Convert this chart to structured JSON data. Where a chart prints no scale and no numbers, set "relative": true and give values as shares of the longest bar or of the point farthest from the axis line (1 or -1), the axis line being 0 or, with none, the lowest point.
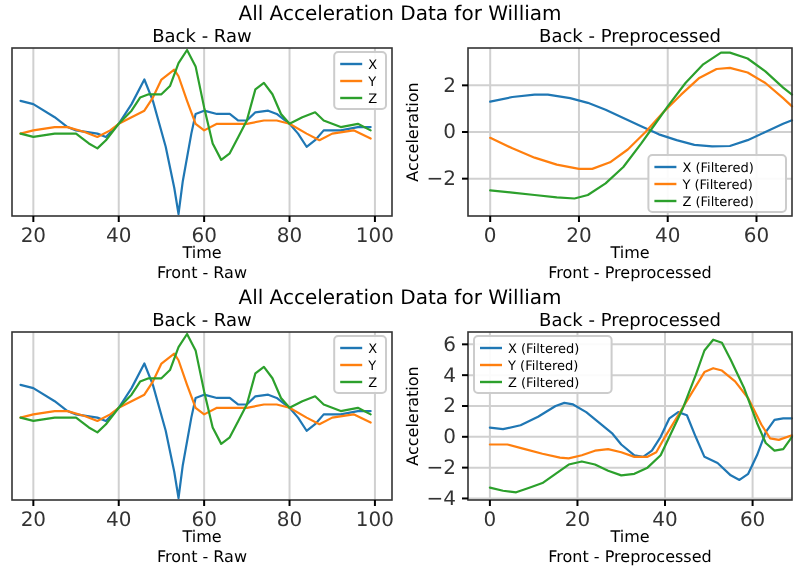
{
  "chart_data": [
    {
      "type": "line",
      "title": "Back - Raw",
      "xlabel": "Time",
      "relative": true,
      "xlim": [
        15,
        104
      ],
      "xticks": [
        20,
        40,
        60,
        80,
        100
      ],
      "grid": "x",
      "legend": "top right",
      "annotations": [
        "All Acceleration Data for William",
        "Front - Raw"
      ],
      "series": [
        {
          "name": "X",
          "color": "#1f77b4",
          "x": [
            17,
            20,
            25,
            28,
            30,
            35,
            37,
            40,
            43,
            46,
            48,
            51,
            53,
            54,
            55,
            57,
            58,
            60,
            63,
            66,
            68,
            70,
            72,
            75,
            77,
            80,
            82,
            84,
            86,
            88,
            92,
            96,
            99
          ],
          "values": [
            0.69,
            0.67,
            0.59,
            0.53,
            0.51,
            0.49,
            0.47,
            0.55,
            0.67,
            0.82,
            0.69,
            0.41,
            0.16,
            0,
            0.2,
            0.49,
            0.61,
            0.63,
            0.61,
            0.61,
            0.57,
            0.57,
            0.62,
            0.63,
            0.61,
            0.55,
            0.49,
            0.41,
            0.45,
            0.51,
            0.51,
            0.53,
            0.53
          ]
        },
        {
          "name": "Y",
          "color": "#ff7f0e",
          "x": [
            17,
            20,
            25,
            28,
            32,
            35,
            38,
            40,
            43,
            46,
            48,
            50,
            53,
            54,
            56,
            58,
            60,
            63,
            66,
            70,
            74,
            77,
            80,
            84,
            87,
            90,
            95,
            99
          ],
          "values": [
            0.49,
            0.51,
            0.53,
            0.53,
            0.5,
            0.47,
            0.51,
            0.55,
            0.59,
            0.63,
            0.71,
            0.82,
            0.88,
            0.84,
            0.69,
            0.55,
            0.51,
            0.55,
            0.55,
            0.55,
            0.57,
            0.57,
            0.55,
            0.49,
            0.45,
            0.49,
            0.51,
            0.46
          ]
        },
        {
          "name": "Z",
          "color": "#2ca02c",
          "x": [
            17,
            20,
            25,
            30,
            33,
            35,
            37,
            40,
            43,
            45,
            47,
            50,
            52,
            54,
            56,
            58,
            60,
            62,
            64,
            66,
            68,
            70,
            72,
            74,
            76,
            78,
            80,
            83,
            86,
            88,
            92,
            96,
            99
          ],
          "values": [
            0.49,
            0.47,
            0.49,
            0.49,
            0.43,
            0.4,
            0.45,
            0.55,
            0.63,
            0.71,
            0.73,
            0.73,
            0.78,
            0.92,
            1,
            0.9,
            0.65,
            0.43,
            0.33,
            0.37,
            0.47,
            0.57,
            0.76,
            0.8,
            0.73,
            0.61,
            0.55,
            0.59,
            0.62,
            0.57,
            0.53,
            0.55,
            0.51
          ]
        }
      ]
    },
    {
      "type": "line",
      "title": "Back - Preprocessed",
      "xlabel": "Time",
      "ylabel": "Acceleration",
      "xlim": [
        -5,
        68
      ],
      "xticks": [
        0,
        20,
        40,
        60
      ],
      "ylim": [
        -3.6,
        3.6
      ],
      "yticks": [
        -2,
        0,
        2
      ],
      "grid": true,
      "legend": "bottom right",
      "annotations": [
        "Front - Preprocessed"
      ],
      "series": [
        {
          "name": "X (Filtered)",
          "color": "#1f77b4",
          "x": [
            0,
            5,
            10,
            13,
            18,
            22,
            26,
            30,
            34,
            38,
            42,
            46,
            50,
            54,
            58,
            62,
            66,
            68
          ],
          "values": [
            1.3,
            1.5,
            1.6,
            1.6,
            1.45,
            1.25,
            0.95,
            0.6,
            0.25,
            -0.1,
            -0.35,
            -0.55,
            -0.62,
            -0.6,
            -0.35,
            0,
            0.35,
            0.5
          ]
        },
        {
          "name": "Y (Filtered)",
          "color": "#ff7f0e",
          "x": [
            0,
            5,
            10,
            15,
            20,
            23,
            27,
            31,
            35,
            39,
            43,
            47,
            51,
            54,
            58,
            62,
            66,
            68
          ],
          "values": [
            -0.25,
            -0.7,
            -1.1,
            -1.4,
            -1.58,
            -1.58,
            -1.3,
            -0.75,
            0,
            0.85,
            1.6,
            2.3,
            2.7,
            2.75,
            2.55,
            2.1,
            1.45,
            1.1
          ]
        },
        {
          "name": "Z (Filtered)",
          "color": "#2ca02c",
          "x": [
            0,
            5,
            10,
            15,
            19,
            22,
            26,
            30,
            34,
            37,
            40,
            44,
            48,
            52,
            54,
            58,
            62,
            66,
            68
          ],
          "values": [
            -2.5,
            -2.6,
            -2.7,
            -2.8,
            -2.85,
            -2.7,
            -2.2,
            -1.5,
            -0.5,
            0.3,
            1.1,
            2.1,
            2.9,
            3.4,
            3.4,
            3.15,
            2.6,
            1.9,
            1.6
          ]
        }
      ]
    },
    {
      "type": "line",
      "title": "Back - Raw",
      "xlabel": "Time",
      "relative": true,
      "xlim": [
        15,
        104
      ],
      "xticks": [
        20,
        40,
        60,
        80,
        100
      ],
      "grid": "x",
      "legend": "top right",
      "annotations": [
        "All Acceleration Data for William",
        "Front - Raw"
      ],
      "series": [
        {
          "name": "X",
          "color": "#1f77b4",
          "x": [
            17,
            20,
            25,
            28,
            30,
            35,
            37,
            40,
            43,
            46,
            48,
            51,
            53,
            54,
            55,
            57,
            58,
            60,
            63,
            66,
            68,
            70,
            72,
            75,
            77,
            80,
            82,
            84,
            86,
            88,
            92,
            96,
            99
          ],
          "values": [
            0.69,
            0.67,
            0.59,
            0.53,
            0.51,
            0.49,
            0.47,
            0.55,
            0.67,
            0.82,
            0.69,
            0.41,
            0.16,
            0,
            0.2,
            0.49,
            0.61,
            0.63,
            0.61,
            0.61,
            0.57,
            0.57,
            0.62,
            0.63,
            0.61,
            0.55,
            0.49,
            0.41,
            0.45,
            0.51,
            0.51,
            0.53,
            0.53
          ]
        },
        {
          "name": "Y",
          "color": "#ff7f0e",
          "x": [
            17,
            20,
            25,
            28,
            32,
            35,
            38,
            40,
            43,
            46,
            48,
            50,
            53,
            54,
            56,
            58,
            60,
            63,
            66,
            70,
            74,
            77,
            80,
            84,
            87,
            90,
            95,
            99
          ],
          "values": [
            0.49,
            0.51,
            0.53,
            0.53,
            0.5,
            0.47,
            0.51,
            0.55,
            0.59,
            0.63,
            0.71,
            0.82,
            0.88,
            0.84,
            0.69,
            0.55,
            0.51,
            0.55,
            0.55,
            0.55,
            0.57,
            0.57,
            0.55,
            0.49,
            0.45,
            0.49,
            0.51,
            0.46
          ]
        },
        {
          "name": "Z",
          "color": "#2ca02c",
          "x": [
            17,
            20,
            25,
            30,
            33,
            35,
            37,
            40,
            43,
            45,
            47,
            50,
            52,
            54,
            56,
            58,
            60,
            62,
            64,
            66,
            68,
            70,
            72,
            74,
            76,
            78,
            80,
            83,
            86,
            88,
            92,
            96,
            99
          ],
          "values": [
            0.49,
            0.47,
            0.49,
            0.49,
            0.43,
            0.4,
            0.45,
            0.55,
            0.63,
            0.71,
            0.73,
            0.73,
            0.78,
            0.92,
            1,
            0.9,
            0.65,
            0.43,
            0.33,
            0.37,
            0.47,
            0.57,
            0.76,
            0.8,
            0.73,
            0.61,
            0.55,
            0.59,
            0.62,
            0.57,
            0.53,
            0.55,
            0.51
          ]
        }
      ]
    },
    {
      "type": "line",
      "title": "Back - Preprocessed",
      "xlabel": "Time",
      "ylabel": "Acceleration",
      "xlim": [
        -5,
        69
      ],
      "xticks": [
        0,
        20,
        40,
        60
      ],
      "ylim": [
        -4.1,
        6.8
      ],
      "yticks": [
        -4,
        -2,
        0,
        2,
        4,
        6
      ],
      "grid": true,
      "legend": "top left",
      "annotations": [
        "Front - Preprocessed"
      ],
      "series": [
        {
          "name": "X (Filtered)",
          "color": "#1f77b4",
          "x": [
            0,
            3,
            7,
            11,
            15,
            17,
            19,
            22,
            25,
            28,
            30,
            33,
            35,
            37,
            39,
            41,
            43,
            45,
            47,
            49,
            52,
            55,
            57,
            59,
            61,
            63,
            65,
            67,
            69
          ],
          "values": [
            0.6,
            0.5,
            0.75,
            1.3,
            2,
            2.2,
            2.1,
            1.6,
            0.9,
            0.2,
            -0.5,
            -1.2,
            -1.3,
            -0.9,
            0,
            1.2,
            1.6,
            1.4,
            0,
            -1.3,
            -1.7,
            -2.5,
            -2.8,
            -2.4,
            -1.2,
            0.3,
            1.1,
            1.2,
            1.2
          ]
        },
        {
          "name": "Y (Filtered)",
          "color": "#ff7f0e",
          "x": [
            0,
            4,
            8,
            12,
            16,
            18,
            21,
            24,
            27,
            30,
            33,
            36,
            38,
            40,
            43,
            46,
            49,
            51,
            53,
            56,
            59,
            62,
            64,
            66,
            69
          ],
          "values": [
            -0.5,
            -0.5,
            -0.8,
            -1.1,
            -1.35,
            -1.4,
            -1.2,
            -0.9,
            -0.8,
            -1,
            -1.3,
            -1.3,
            -1,
            0,
            1.4,
            2.8,
            4.2,
            4.45,
            4.3,
            3.6,
            2.5,
            0.8,
            -0.1,
            -0.2,
            0.1
          ]
        },
        {
          "name": "Z (Filtered)",
          "color": "#2ca02c",
          "x": [
            0,
            3,
            6,
            9,
            12,
            15,
            18,
            21,
            24,
            27,
            30,
            33,
            36,
            39,
            41,
            44,
            47,
            49,
            51,
            53,
            55,
            58,
            61,
            63,
            65,
            67,
            69
          ],
          "values": [
            -3.3,
            -3.5,
            -3.6,
            -3.3,
            -3,
            -2.4,
            -1.8,
            -1.6,
            -1.8,
            -2.2,
            -2.5,
            -2.4,
            -2,
            -1.2,
            0,
            1.8,
            4,
            5.6,
            6.3,
            6.1,
            5,
            3.2,
            0.9,
            -0.4,
            -0.9,
            -0.8,
            0
          ]
        }
      ]
    }
  ]
}
